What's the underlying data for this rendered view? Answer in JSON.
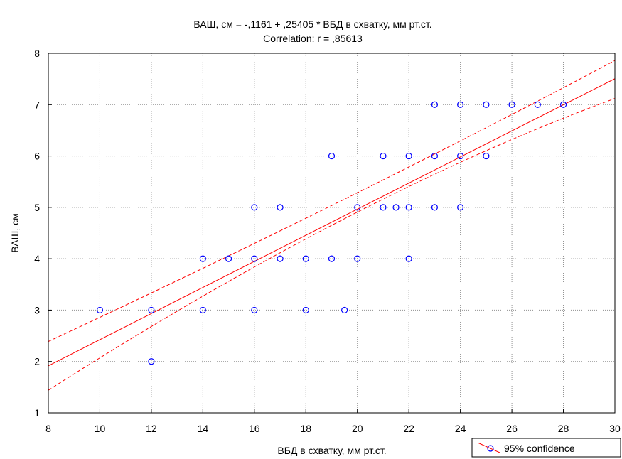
{
  "chart_data": {
    "type": "scatter",
    "title": "ВАШ, см  = -,1161 + ,25405 * ВБД в схватку, мм рт.ст.",
    "subtitle": "Correlation: r = ,85613",
    "xlabel": "ВБД в схватку, мм рт.ст.",
    "ylabel": "ВАШ, см",
    "xlim": [
      8,
      30
    ],
    "ylim": [
      1,
      8
    ],
    "xticks": [
      8,
      10,
      12,
      14,
      16,
      18,
      20,
      22,
      24,
      26,
      28,
      30
    ],
    "yticks": [
      1,
      2,
      3,
      4,
      5,
      6,
      7,
      8
    ],
    "grid": true,
    "legend": {
      "label": "95% confidence",
      "position": "bottom-right"
    },
    "colors": {
      "points": "#0000ff",
      "fit": "#ff0000"
    },
    "regression": {
      "intercept": -0.1161,
      "slope": 0.25405
    },
    "confidence_band": {
      "x": [
        8,
        20,
        30
      ],
      "upper": [
        2.39,
        5.16,
        7.86
      ],
      "lower": [
        1.44,
        4.78,
        7.12
      ]
    },
    "points": [
      {
        "x": 10,
        "y": 3
      },
      {
        "x": 12,
        "y": 3
      },
      {
        "x": 12,
        "y": 2
      },
      {
        "x": 14,
        "y": 4
      },
      {
        "x": 14,
        "y": 3
      },
      {
        "x": 15,
        "y": 4
      },
      {
        "x": 16,
        "y": 5
      },
      {
        "x": 16,
        "y": 4
      },
      {
        "x": 16,
        "y": 3
      },
      {
        "x": 17,
        "y": 5
      },
      {
        "x": 17,
        "y": 4
      },
      {
        "x": 18,
        "y": 4
      },
      {
        "x": 18,
        "y": 3
      },
      {
        "x": 19,
        "y": 6
      },
      {
        "x": 19,
        "y": 4
      },
      {
        "x": 19.5,
        "y": 3
      },
      {
        "x": 20,
        "y": 5
      },
      {
        "x": 20,
        "y": 4
      },
      {
        "x": 21,
        "y": 6
      },
      {
        "x": 21,
        "y": 5
      },
      {
        "x": 21.5,
        "y": 5
      },
      {
        "x": 22,
        "y": 6
      },
      {
        "x": 22,
        "y": 5
      },
      {
        "x": 22,
        "y": 4
      },
      {
        "x": 23,
        "y": 7
      },
      {
        "x": 23,
        "y": 6
      },
      {
        "x": 23,
        "y": 5
      },
      {
        "x": 24,
        "y": 7
      },
      {
        "x": 24,
        "y": 6
      },
      {
        "x": 24,
        "y": 5
      },
      {
        "x": 25,
        "y": 7
      },
      {
        "x": 25,
        "y": 6
      },
      {
        "x": 26,
        "y": 7
      },
      {
        "x": 27,
        "y": 7
      },
      {
        "x": 28,
        "y": 7
      }
    ]
  }
}
